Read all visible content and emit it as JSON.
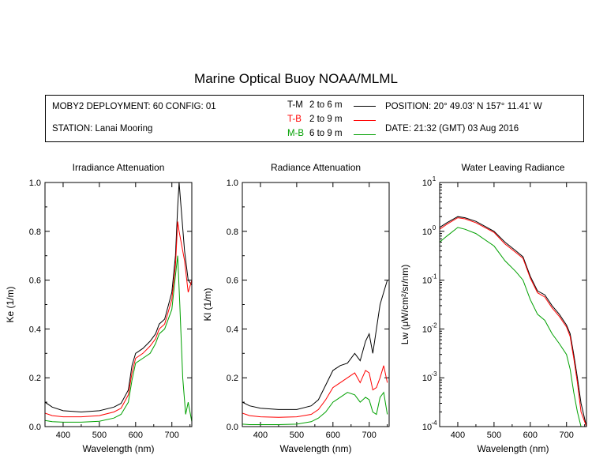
{
  "title": "Marine Optical Buoy NOAA/MLML",
  "info": {
    "deployment": "MOBY2 DEPLOYMENT: 60 CONFIG: 01",
    "station": "STATION: Lanai Mooring",
    "position": "POSITION: 20° 49.03' N   157° 11.41' W",
    "date": "DATE: 21:32 (GMT) 03 Aug 2016"
  },
  "legend": [
    {
      "code": "T-M",
      "depth": "2 to 6  m",
      "color": "#000000"
    },
    {
      "code": "T-B",
      "depth": "2 to 9  m",
      "color": "#ff0000"
    },
    {
      "code": "M-B",
      "depth": "6 to 9  m",
      "color": "#00a000"
    }
  ],
  "chart_data": [
    {
      "type": "line",
      "title": "Irradiance Attenuation",
      "xlabel": "Wavelength (nm)",
      "ylabel": "Ke  (1/m)",
      "xlim": [
        350,
        755
      ],
      "ylim": [
        0,
        1
      ],
      "xticks": [
        "400",
        "500",
        "600",
        "700"
      ],
      "yticks": [
        "0.0",
        "0.2",
        "0.4",
        "0.6",
        "0.8",
        "1.0"
      ],
      "series": [
        {
          "color": "#000000",
          "x": [
            350,
            370,
            400,
            450,
            500,
            540,
            560,
            580,
            590,
            600,
            620,
            640,
            655,
            665,
            680,
            700,
            710,
            716,
            720,
            735,
            745,
            755
          ],
          "y": [
            0.1,
            0.08,
            0.065,
            0.06,
            0.065,
            0.08,
            0.095,
            0.15,
            0.25,
            0.3,
            0.32,
            0.35,
            0.38,
            0.42,
            0.44,
            0.55,
            0.7,
            0.9,
            1.0,
            0.72,
            0.6,
            0.58
          ]
        },
        {
          "color": "#ff0000",
          "x": [
            350,
            370,
            400,
            450,
            500,
            540,
            560,
            580,
            590,
            600,
            620,
            640,
            655,
            665,
            680,
            700,
            710,
            716,
            720,
            735,
            745,
            755
          ],
          "y": [
            0.055,
            0.045,
            0.04,
            0.04,
            0.045,
            0.06,
            0.075,
            0.13,
            0.22,
            0.28,
            0.3,
            0.33,
            0.36,
            0.4,
            0.42,
            0.52,
            0.66,
            0.84,
            0.8,
            0.68,
            0.55,
            0.6
          ]
        },
        {
          "color": "#00a000",
          "x": [
            350,
            370,
            400,
            450,
            500,
            540,
            560,
            580,
            590,
            600,
            620,
            640,
            655,
            665,
            680,
            700,
            710,
            716,
            722,
            730,
            738,
            745,
            755
          ],
          "y": [
            0.025,
            0.02,
            0.018,
            0.018,
            0.022,
            0.035,
            0.05,
            0.1,
            0.19,
            0.26,
            0.28,
            0.3,
            0.34,
            0.38,
            0.4,
            0.48,
            0.62,
            0.7,
            0.5,
            0.2,
            0.05,
            0.1,
            0.02
          ]
        }
      ]
    },
    {
      "type": "line",
      "title": "Radiance Attenuation",
      "xlabel": "Wavelength (nm)",
      "ylabel": "Kl  (1/m)",
      "xlim": [
        350,
        755
      ],
      "ylim": [
        0,
        1
      ],
      "xticks": [
        "400",
        "500",
        "600",
        "700"
      ],
      "yticks": [
        "0.0",
        "0.2",
        "0.4",
        "0.6",
        "0.8",
        "1.0"
      ],
      "series": [
        {
          "color": "#000000",
          "x": [
            350,
            370,
            400,
            450,
            500,
            540,
            560,
            580,
            600,
            620,
            640,
            660,
            675,
            690,
            700,
            710,
            720,
            730,
            740,
            750
          ],
          "y": [
            0.1,
            0.085,
            0.075,
            0.07,
            0.07,
            0.085,
            0.11,
            0.17,
            0.23,
            0.25,
            0.26,
            0.3,
            0.27,
            0.35,
            0.38,
            0.3,
            0.4,
            0.5,
            0.55,
            0.6
          ]
        },
        {
          "color": "#ff0000",
          "x": [
            350,
            370,
            400,
            450,
            500,
            540,
            560,
            580,
            600,
            620,
            640,
            660,
            675,
            690,
            700,
            710,
            720,
            730,
            740,
            750
          ],
          "y": [
            0.055,
            0.045,
            0.04,
            0.038,
            0.04,
            0.05,
            0.07,
            0.11,
            0.16,
            0.18,
            0.2,
            0.22,
            0.18,
            0.23,
            0.22,
            0.15,
            0.16,
            0.2,
            0.25,
            0.18
          ]
        },
        {
          "color": "#00a000",
          "x": [
            350,
            370,
            400,
            450,
            500,
            540,
            560,
            580,
            600,
            620,
            640,
            660,
            675,
            690,
            700,
            710,
            720,
            730,
            740,
            750
          ],
          "y": [
            0.01,
            0.008,
            0.008,
            0.008,
            0.01,
            0.02,
            0.035,
            0.06,
            0.1,
            0.12,
            0.14,
            0.13,
            0.1,
            0.12,
            0.11,
            0.06,
            0.05,
            0.12,
            0.14,
            0.05
          ]
        }
      ]
    },
    {
      "type": "line",
      "title": "Water Leaving Radiance",
      "xlabel": "Wavelength (nm)",
      "ylabel": "Lw  (μW/cm²/sr/nm)",
      "log_y": true,
      "xlim": [
        350,
        755
      ],
      "ylim": [
        0.0001,
        10
      ],
      "xticks": [
        "400",
        "500",
        "600",
        "700"
      ],
      "series": [
        {
          "color": "#000000",
          "x": [
            350,
            370,
            400,
            420,
            450,
            500,
            530,
            560,
            580,
            600,
            620,
            640,
            660,
            680,
            700,
            710,
            720,
            730,
            740,
            755
          ],
          "y": [
            1.2,
            1.5,
            2.0,
            1.9,
            1.6,
            1.0,
            0.6,
            0.4,
            0.3,
            0.12,
            0.06,
            0.05,
            0.03,
            0.02,
            0.012,
            0.008,
            0.003,
            0.001,
            0.0003,
            0.0001
          ]
        },
        {
          "color": "#ff0000",
          "x": [
            350,
            370,
            400,
            420,
            450,
            500,
            530,
            560,
            580,
            600,
            620,
            640,
            660,
            680,
            700,
            710,
            720,
            730,
            740,
            755
          ],
          "y": [
            1.1,
            1.4,
            1.9,
            1.8,
            1.5,
            0.95,
            0.55,
            0.37,
            0.28,
            0.11,
            0.055,
            0.045,
            0.027,
            0.018,
            0.011,
            0.007,
            0.0025,
            0.0008,
            0.0002,
            0.0001
          ]
        },
        {
          "color": "#00a000",
          "x": [
            350,
            370,
            400,
            420,
            450,
            500,
            530,
            560,
            580,
            600,
            620,
            640,
            660,
            680,
            700,
            710,
            720,
            730,
            740,
            755
          ],
          "y": [
            0.6,
            0.8,
            1.2,
            1.1,
            0.9,
            0.5,
            0.25,
            0.15,
            0.1,
            0.04,
            0.02,
            0.015,
            0.008,
            0.005,
            0.003,
            0.0015,
            0.0005,
            0.0002,
            0.0001,
            0.0001
          ]
        }
      ]
    }
  ]
}
